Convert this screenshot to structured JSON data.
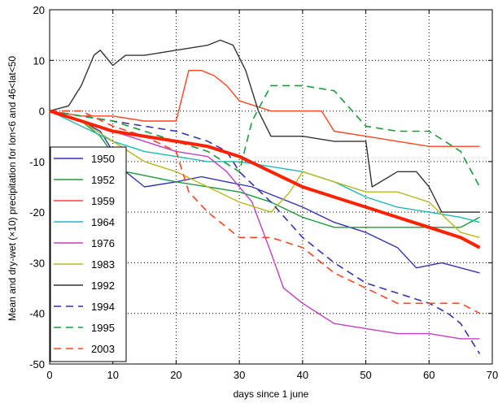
{
  "chart_data": {
    "type": "line",
    "title": "",
    "xlabel": "days since 1 june",
    "ylabel": "Mean and dry-wet (×10) precipitation for lon<6 and 46<lat<50",
    "xlim": [
      0,
      70
    ],
    "ylim": [
      -50,
      20
    ],
    "xticks": [
      0,
      10,
      20,
      30,
      40,
      50,
      60,
      70
    ],
    "yticks": [
      20,
      10,
      0,
      -10,
      -20,
      -30,
      -40,
      -50
    ],
    "grid": "dotted",
    "legend_position": "lower-left",
    "series": [
      {
        "name": "1950",
        "color": "#3333b3",
        "dash": "solid",
        "x": [
          0,
          5,
          8,
          12,
          15,
          20,
          24,
          28,
          32,
          36,
          40,
          45,
          50,
          55,
          58,
          62,
          65,
          68
        ],
        "y": [
          0,
          -2,
          -4,
          -12,
          -15,
          -14,
          -13,
          -14,
          -15,
          -17,
          -19,
          -22,
          -24,
          -27,
          -31,
          -30,
          -31,
          -32
        ]
      },
      {
        "name": "1952",
        "color": "#1a9c3a",
        "dash": "solid",
        "x": [
          0,
          5,
          8,
          12,
          20,
          25,
          30,
          35,
          40,
          45,
          50,
          55,
          60,
          65,
          68
        ],
        "y": [
          0,
          -2,
          -5,
          -12,
          -14,
          -15,
          -16,
          -18,
          -21,
          -23,
          -23,
          -23,
          -23,
          -23,
          -21
        ]
      },
      {
        "name": "1959",
        "color": "#ff4422",
        "dash": "solid",
        "x": [
          0,
          5,
          10,
          15,
          20,
          21,
          22,
          24,
          26,
          28,
          30,
          35,
          40,
          43,
          45,
          50,
          55,
          60,
          65,
          68
        ],
        "y": [
          0,
          -1,
          -1,
          -2,
          -2,
          3,
          8,
          8,
          7,
          5,
          2,
          0,
          0,
          0,
          -4,
          -5,
          -6,
          -7,
          -7,
          -7
        ]
      },
      {
        "name": "1964",
        "color": "#20b8b8",
        "dash": "solid",
        "x": [
          0,
          10,
          15,
          20,
          25,
          30,
          35,
          40,
          45,
          50,
          55,
          60,
          65,
          68
        ],
        "y": [
          0,
          -6,
          -8,
          -9,
          -10,
          -10,
          -11,
          -12,
          -14,
          -17,
          -19,
          -20,
          -21,
          -22
        ]
      },
      {
        "name": "1976",
        "color": "#c040c0",
        "dash": "solid",
        "x": [
          0,
          5,
          10,
          15,
          20,
          25,
          28,
          32,
          35,
          37,
          40,
          45,
          50,
          55,
          60,
          65,
          68
        ],
        "y": [
          0,
          -2,
          -4,
          -6,
          -8,
          -9,
          -12,
          -18,
          -28,
          -35,
          -38,
          -42,
          -43,
          -44,
          -44,
          -45,
          -45
        ]
      },
      {
        "name": "1983",
        "color": "#b8b820",
        "dash": "solid",
        "x": [
          0,
          5,
          10,
          15,
          20,
          25,
          30,
          35,
          38,
          40,
          45,
          50,
          55,
          60,
          65,
          68
        ],
        "y": [
          0,
          -2,
          -6,
          -10,
          -12,
          -15,
          -18,
          -20,
          -16,
          -12,
          -14,
          -16,
          -16,
          -18,
          -24,
          -25
        ]
      },
      {
        "name": "1992",
        "color": "#333333",
        "dash": "solid",
        "x": [
          0,
          3,
          5,
          7,
          8,
          10,
          12,
          15,
          20,
          25,
          27,
          29,
          31,
          33,
          35,
          40,
          45,
          50,
          51,
          55,
          58,
          60,
          62,
          65,
          68
        ],
        "y": [
          0,
          1,
          5,
          11,
          12,
          9,
          11,
          11,
          12,
          13,
          14,
          13,
          8,
          0,
          -5,
          -5,
          -6,
          -6,
          -15,
          -12,
          -12,
          -15,
          -20,
          -20,
          -20
        ]
      },
      {
        "name": "1994",
        "color": "#3333b3",
        "dash": "dashed",
        "x": [
          0,
          10,
          15,
          20,
          25,
          28,
          30,
          35,
          40,
          45,
          50,
          55,
          60,
          63,
          65,
          68
        ],
        "y": [
          0,
          -2,
          -3,
          -4,
          -6,
          -8,
          -12,
          -18,
          -25,
          -30,
          -34,
          -36,
          -38,
          -40,
          -42,
          -48
        ]
      },
      {
        "name": "1995",
        "color": "#1a9c3a",
        "dash": "dashed",
        "x": [
          0,
          10,
          15,
          20,
          25,
          30,
          32,
          35,
          40,
          45,
          50,
          55,
          60,
          65,
          68
        ],
        "y": [
          0,
          -2,
          -4,
          -6,
          -8,
          -12,
          -2,
          5,
          5,
          4,
          -3,
          -4,
          -4,
          -8,
          -15
        ]
      },
      {
        "name": "2003",
        "color": "#ff4422",
        "dash": "dashed",
        "x": [
          0,
          5,
          10,
          15,
          20,
          22,
          25,
          30,
          35,
          40,
          45,
          50,
          55,
          60,
          65,
          68
        ],
        "y": [
          0,
          0,
          -3,
          -5,
          -8,
          -16,
          -20,
          -25,
          -25,
          -27,
          -32,
          -35,
          -38,
          -38,
          -38,
          -40
        ]
      },
      {
        "name": "",
        "color": "#ff2200",
        "dash": "thick",
        "x": [
          0,
          5,
          10,
          15,
          20,
          25,
          30,
          35,
          40,
          45,
          50,
          55,
          60,
          65,
          68
        ],
        "y": [
          0,
          -2,
          -4,
          -5,
          -6,
          -7,
          -9,
          -12,
          -15,
          -17,
          -19,
          -21,
          -23,
          -25,
          -27
        ]
      }
    ]
  }
}
